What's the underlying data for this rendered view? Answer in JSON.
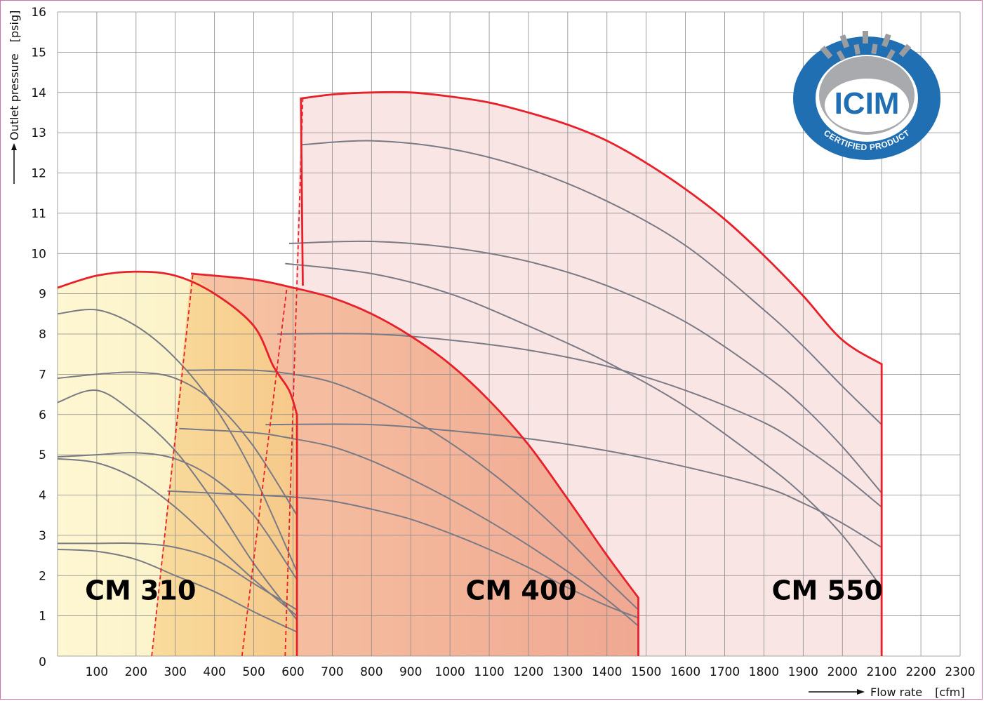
{
  "chart_data": {
    "type": "area",
    "xlabel": "Flow rate",
    "x_unit": "[cfm]",
    "ylabel": "Outlet pressure",
    "y_unit": "[psig]",
    "xlim": [
      0,
      2300
    ],
    "ylim": [
      0,
      16
    ],
    "x_ticks": [
      "100",
      "200",
      "300",
      "400",
      "500",
      "600",
      "700",
      "800",
      "900",
      "1000",
      "1100",
      "1200",
      "1300",
      "1400",
      "1500",
      "1600",
      "1700",
      "1800",
      "1900",
      "2000",
      "2100",
      "2200",
      "2300"
    ],
    "y_ticks": [
      "0",
      "1",
      "2",
      "3",
      "4",
      "5",
      "6",
      "7",
      "8",
      "9",
      "10",
      "11",
      "12",
      "13",
      "14",
      "15",
      "16"
    ],
    "grid": true,
    "regions": [
      {
        "name": "CM 310",
        "fill": "#fbf1c0",
        "envelope": [
          [
            0,
            9.15
          ],
          [
            100,
            9.45
          ],
          [
            200,
            9.55
          ],
          [
            300,
            9.45
          ],
          [
            400,
            9.0
          ],
          [
            500,
            8.2
          ],
          [
            550,
            7.2
          ],
          [
            590,
            6.6
          ],
          [
            610,
            6.0
          ]
        ],
        "x_max": 610,
        "label_at": [
          70,
          1.4
        ]
      },
      {
        "name": "CM 400",
        "fill": "#f2a688",
        "envelope": [
          [
            340,
            9.5
          ],
          [
            500,
            9.35
          ],
          [
            600,
            9.15
          ],
          [
            700,
            8.9
          ],
          [
            800,
            8.5
          ],
          [
            900,
            7.95
          ],
          [
            1000,
            7.25
          ],
          [
            1100,
            6.35
          ],
          [
            1200,
            5.25
          ],
          [
            1300,
            3.9
          ],
          [
            1400,
            2.5
          ],
          [
            1480,
            1.45
          ]
        ],
        "x_max": 1480,
        "label_at": [
          1040,
          1.4
        ]
      },
      {
        "name": "CM 550",
        "fill": "#f9e0e0",
        "envelope": [
          [
            620,
            13.85
          ],
          [
            700,
            13.95
          ],
          [
            800,
            14.0
          ],
          [
            900,
            14.0
          ],
          [
            1000,
            13.9
          ],
          [
            1100,
            13.75
          ],
          [
            1200,
            13.5
          ],
          [
            1300,
            13.2
          ],
          [
            1400,
            12.8
          ],
          [
            1500,
            12.25
          ],
          [
            1600,
            11.6
          ],
          [
            1700,
            10.85
          ],
          [
            1800,
            9.95
          ],
          [
            1900,
            8.95
          ],
          [
            2000,
            7.85
          ],
          [
            2100,
            7.25
          ]
        ],
        "x_max": 2100,
        "label_at": [
          1820,
          1.4
        ]
      }
    ],
    "dashed_boundaries": [
      {
        "x_at_0": 240,
        "x_at_top": 345,
        "top_y": 9.5
      },
      {
        "x_at_0": 470,
        "x_at_top": 585,
        "top_y": 9.2
      },
      {
        "x_at_0": 580,
        "x_at_top": 625,
        "top_y": 13.85
      }
    ],
    "performance_curves": [
      {
        "region": "CM 310",
        "points": [
          [
            0,
            8.5
          ],
          [
            100,
            8.6
          ],
          [
            200,
            8.2
          ],
          [
            300,
            7.4
          ],
          [
            400,
            6.2
          ],
          [
            500,
            4.5
          ],
          [
            610,
            2.1
          ]
        ]
      },
      {
        "region": "CM 310",
        "points": [
          [
            0,
            6.9
          ],
          [
            100,
            7.0
          ],
          [
            200,
            7.05
          ],
          [
            300,
            6.9
          ],
          [
            400,
            6.3
          ],
          [
            500,
            5.2
          ],
          [
            610,
            3.5
          ]
        ]
      },
      {
        "region": "CM 310",
        "points": [
          [
            0,
            6.3
          ],
          [
            100,
            6.6
          ],
          [
            200,
            6.0
          ],
          [
            300,
            5.1
          ],
          [
            400,
            3.8
          ],
          [
            500,
            2.3
          ],
          [
            610,
            0.9
          ]
        ]
      },
      {
        "region": "CM 310",
        "points": [
          [
            0,
            4.95
          ],
          [
            100,
            5.0
          ],
          [
            200,
            5.05
          ],
          [
            300,
            4.9
          ],
          [
            400,
            4.4
          ],
          [
            500,
            3.5
          ],
          [
            610,
            1.9
          ]
        ]
      },
      {
        "region": "CM 310",
        "points": [
          [
            0,
            4.9
          ],
          [
            100,
            4.8
          ],
          [
            200,
            4.4
          ],
          [
            300,
            3.7
          ],
          [
            400,
            2.8
          ],
          [
            500,
            1.9
          ],
          [
            610,
            1.0
          ]
        ]
      },
      {
        "region": "CM 310",
        "points": [
          [
            0,
            2.8
          ],
          [
            100,
            2.8
          ],
          [
            200,
            2.8
          ],
          [
            300,
            2.7
          ],
          [
            400,
            2.4
          ],
          [
            500,
            1.8
          ],
          [
            610,
            1.15
          ]
        ]
      },
      {
        "region": "CM 310",
        "points": [
          [
            0,
            2.65
          ],
          [
            100,
            2.6
          ],
          [
            200,
            2.4
          ],
          [
            300,
            2.0
          ],
          [
            400,
            1.6
          ],
          [
            500,
            1.1
          ],
          [
            610,
            0.6
          ]
        ]
      },
      {
        "region": "CM 400",
        "points": [
          [
            330,
            7.1
          ],
          [
            500,
            7.1
          ],
          [
            600,
            7.0
          ],
          [
            700,
            6.8
          ],
          [
            800,
            6.4
          ],
          [
            900,
            5.9
          ],
          [
            1000,
            5.3
          ],
          [
            1100,
            4.6
          ],
          [
            1200,
            3.8
          ],
          [
            1300,
            2.9
          ],
          [
            1400,
            1.9
          ],
          [
            1480,
            1.15
          ]
        ]
      },
      {
        "region": "CM 400",
        "points": [
          [
            310,
            5.65
          ],
          [
            500,
            5.55
          ],
          [
            600,
            5.4
          ],
          [
            700,
            5.2
          ],
          [
            800,
            4.85
          ],
          [
            900,
            4.4
          ],
          [
            1000,
            3.9
          ],
          [
            1100,
            3.35
          ],
          [
            1200,
            2.75
          ],
          [
            1300,
            2.1
          ],
          [
            1400,
            1.4
          ],
          [
            1480,
            0.75
          ]
        ]
      },
      {
        "region": "CM 400",
        "points": [
          [
            280,
            4.1
          ],
          [
            500,
            4.0
          ],
          [
            600,
            3.95
          ],
          [
            700,
            3.85
          ],
          [
            800,
            3.65
          ],
          [
            900,
            3.4
          ],
          [
            1000,
            3.05
          ],
          [
            1100,
            2.65
          ],
          [
            1200,
            2.2
          ],
          [
            1300,
            1.7
          ],
          [
            1400,
            1.25
          ],
          [
            1480,
            0.95
          ]
        ]
      },
      {
        "region": "CM 550",
        "points": [
          [
            620,
            12.7
          ],
          [
            800,
            12.8
          ],
          [
            1000,
            12.6
          ],
          [
            1200,
            12.1
          ],
          [
            1400,
            11.3
          ],
          [
            1600,
            10.2
          ],
          [
            1800,
            8.6
          ],
          [
            1900,
            7.7
          ],
          [
            2000,
            6.7
          ],
          [
            2100,
            5.75
          ]
        ]
      },
      {
        "region": "CM 550",
        "points": [
          [
            590,
            10.25
          ],
          [
            800,
            10.3
          ],
          [
            1000,
            10.15
          ],
          [
            1200,
            9.8
          ],
          [
            1400,
            9.2
          ],
          [
            1600,
            8.3
          ],
          [
            1800,
            7.0
          ],
          [
            1900,
            6.2
          ],
          [
            2000,
            5.2
          ],
          [
            2100,
            4.05
          ]
        ]
      },
      {
        "region": "CM 550",
        "points": [
          [
            580,
            9.75
          ],
          [
            800,
            9.5
          ],
          [
            1000,
            9.0
          ],
          [
            1200,
            8.2
          ],
          [
            1400,
            7.3
          ],
          [
            1600,
            6.2
          ],
          [
            1800,
            4.8
          ],
          [
            1900,
            4.0
          ],
          [
            2000,
            3.0
          ],
          [
            2100,
            1.7
          ]
        ]
      },
      {
        "region": "CM 550",
        "points": [
          [
            560,
            8.0
          ],
          [
            800,
            8.0
          ],
          [
            1000,
            7.85
          ],
          [
            1200,
            7.6
          ],
          [
            1400,
            7.2
          ],
          [
            1600,
            6.6
          ],
          [
            1800,
            5.8
          ],
          [
            1900,
            5.2
          ],
          [
            2000,
            4.5
          ],
          [
            2100,
            3.7
          ]
        ]
      },
      {
        "region": "CM 550",
        "points": [
          [
            530,
            5.75
          ],
          [
            800,
            5.75
          ],
          [
            1000,
            5.6
          ],
          [
            1200,
            5.4
          ],
          [
            1400,
            5.1
          ],
          [
            1600,
            4.7
          ],
          [
            1800,
            4.2
          ],
          [
            1900,
            3.8
          ],
          [
            2000,
            3.3
          ],
          [
            2100,
            2.7
          ]
        ]
      }
    ],
    "logo": {
      "name": "certification-seal",
      "text": "ICIM",
      "ring_text": "CERTIFIED PRODUCT"
    }
  },
  "colors": {
    "grid": "#8a8a8a",
    "envelope": "#e8202a",
    "curve": "#7a7a85",
    "logo_blue": "#1f6fb2",
    "logo_grey": "#a8aaad"
  }
}
